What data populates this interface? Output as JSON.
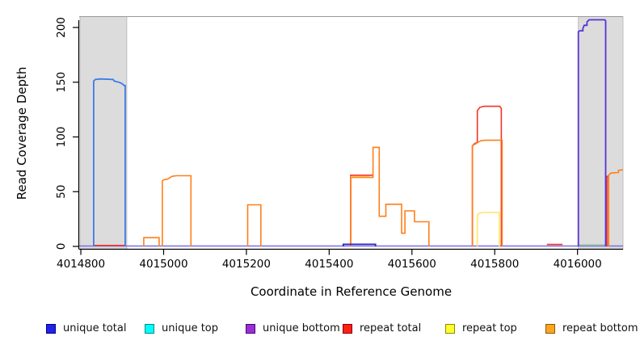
{
  "chart_data": {
    "type": "line",
    "title": "",
    "xlabel": "Coordinate in Reference Genome",
    "ylabel": "Read Coverage Depth",
    "xlim": [
      4014796,
      4016110
    ],
    "ylim": [
      0,
      210
    ],
    "xticks": [
      "4014800",
      "4015000",
      "4015200",
      "4015400",
      "4015600",
      "4015800",
      "4016000"
    ],
    "xtick_values": [
      4014800,
      4015000,
      4015200,
      4015400,
      4015600,
      4015800,
      4016000
    ],
    "yticks": [
      "0",
      "50",
      "100",
      "150",
      "200"
    ],
    "ytick_values": [
      0,
      50,
      100,
      150,
      200
    ],
    "grid": false,
    "background": "#ffffff",
    "shade_color": "#dcdcdc",
    "shade_border": "#b3b3b3",
    "shaded_regions": [
      {
        "x0": 4014798,
        "x1": 4014911,
        "meaning": "shaded region left"
      },
      {
        "x0": 4016002,
        "x1": 4016110,
        "meaning": "shaded region right"
      }
    ],
    "series": [
      {
        "name": "unique bottom baseline",
        "legend": "unique bottom",
        "color": "#7c6cee",
        "width": 1.5,
        "segments": [
          [
            [
              4014796,
              0.4
            ],
            [
              4016110,
              0.4
            ]
          ]
        ]
      },
      {
        "name": "repeat total",
        "legend": "repeat total",
        "color": "#f53227",
        "width": 1.6,
        "segments": [
          [
            [
              4014832,
              0.9
            ],
            [
              4014906,
              0.9
            ]
          ],
          [
            [
              4015452,
              0
            ],
            [
              4015452,
              65
            ],
            [
              4015506,
              65
            ]
          ],
          [
            [
              4015746,
              0
            ],
            [
              4015746,
              92
            ],
            [
              4015752,
              94
            ],
            [
              4015758,
              95
            ],
            [
              4015758,
              124
            ],
            [
              4015764,
              127
            ],
            [
              4015774,
              128
            ],
            [
              4015812,
              128
            ],
            [
              4015816,
              126
            ],
            [
              4015816,
              0
            ]
          ],
          [
            [
              4015926,
              1.8
            ],
            [
              4015964,
              1.8
            ]
          ],
          [
            [
              4016071,
              0
            ],
            [
              4016071,
              64
            ],
            [
              4016075,
              64
            ],
            [
              4016075,
              0
            ]
          ]
        ]
      },
      {
        "name": "repeat top",
        "legend": "repeat top",
        "color": "#ffe566",
        "width": 1.6,
        "segments": [
          [
            [
              4015452,
              63.6
            ],
            [
              4015497,
              63.6
            ]
          ],
          [
            [
              4015758,
              0
            ],
            [
              4015758,
              29
            ],
            [
              4015764,
              30.5
            ],
            [
              4015773,
              31
            ],
            [
              4015811,
              31
            ],
            [
              4015811,
              0
            ]
          ]
        ]
      },
      {
        "name": "repeat bottom",
        "legend": "repeat bottom",
        "color": "#ff7f1a",
        "width": 1.6,
        "segments": [
          [
            [
              4014952,
              0
            ],
            [
              4014952,
              8
            ],
            [
              4014989,
              8
            ],
            [
              4014989,
              0
            ]
          ],
          [
            [
              4014997,
              0
            ],
            [
              4014997,
              60
            ],
            [
              4015002,
              61
            ],
            [
              4015009,
              61.5
            ],
            [
              4015014,
              62.5
            ],
            [
              4015020,
              64
            ],
            [
              4015031,
              64.6
            ],
            [
              4015066,
              64.6
            ],
            [
              4015066,
              0
            ]
          ],
          [
            [
              4015203,
              0
            ],
            [
              4015203,
              38
            ],
            [
              4015235,
              38
            ],
            [
              4015235,
              0
            ]
          ],
          [
            [
              4015452,
              0
            ],
            [
              4015452,
              63
            ],
            [
              4015506,
              63
            ],
            [
              4015506,
              90.5
            ],
            [
              4015521,
              90.5
            ],
            [
              4015521,
              27.5
            ],
            [
              4015537,
              27.5
            ],
            [
              4015537,
              38.5
            ],
            [
              4015575,
              38.5
            ],
            [
              4015575,
              12
            ],
            [
              4015583,
              12
            ],
            [
              4015583,
              32.5
            ],
            [
              4015606,
              32.5
            ],
            [
              4015606,
              22.5
            ],
            [
              4015641,
              22.5
            ],
            [
              4015641,
              0
            ]
          ],
          [
            [
              4015746,
              0
            ],
            [
              4015746,
              92
            ],
            [
              4015753,
              93.5
            ],
            [
              4015759,
              95
            ],
            [
              4015767,
              96.5
            ],
            [
              4015777,
              97
            ],
            [
              4015818,
              97
            ],
            [
              4015818,
              0
            ]
          ],
          [
            [
              4016075,
              0
            ],
            [
              4016075,
              65
            ],
            [
              4016081,
              67
            ],
            [
              4016099,
              67.5
            ],
            [
              4016099,
              69.5
            ],
            [
              4016110,
              70
            ]
          ]
        ]
      },
      {
        "name": "unique top segment right region",
        "legend": "unique top",
        "color": "#8fd08f",
        "width": 1.5,
        "segments": [
          [
            [
              4016004,
              1.4
            ],
            [
              4016066,
              1.4
            ]
          ]
        ]
      },
      {
        "name": "unique total low bump mid",
        "legend": "unique total",
        "color": "#2b2bbb",
        "width": 1.8,
        "segments": [
          [
            [
              4015434,
              0
            ],
            [
              4015434,
              1.9
            ],
            [
              4015512,
              1.9
            ],
            [
              4015512,
              0
            ]
          ]
        ]
      },
      {
        "name": "unique total left block",
        "legend": "unique total",
        "color": "#3c7ce8",
        "width": 1.8,
        "segments": [
          [
            [
              4014831,
              0
            ],
            [
              4014831,
              151
            ],
            [
              4014835,
              152.5
            ],
            [
              4014848,
              153
            ],
            [
              4014878,
              152.5
            ],
            [
              4014881,
              151
            ],
            [
              4014892,
              150
            ],
            [
              4014898,
              149
            ],
            [
              4014902,
              148
            ],
            [
              4014904,
              147
            ],
            [
              4014907,
              147
            ],
            [
              4014907,
              0
            ]
          ]
        ]
      },
      {
        "name": "unique total right block",
        "legend": "unique total",
        "color": "#5633d6",
        "width": 1.8,
        "segments": [
          [
            [
              4016002,
              0
            ],
            [
              4016002,
              196
            ],
            [
              4016005,
              197
            ],
            [
              4016013,
              197
            ],
            [
              4016013,
              199
            ],
            [
              4016016,
              202
            ],
            [
              4016023,
              202
            ],
            [
              4016023,
              205
            ],
            [
              4016028,
              207
            ],
            [
              4016066,
              207
            ],
            [
              4016068,
              206
            ],
            [
              4016068,
              0
            ]
          ]
        ]
      }
    ]
  },
  "legend": {
    "items": [
      {
        "label": "unique total",
        "fill": "#2222e6",
        "border": "#00008b"
      },
      {
        "label": "unique top",
        "fill": "#00ffff",
        "border": "#008b8b"
      },
      {
        "label": "unique bottom",
        "fill": "#9a30d0",
        "border": "#4b0082"
      },
      {
        "label": "repeat total",
        "fill": "#ff2015",
        "border": "#8b0000"
      },
      {
        "label": "repeat top",
        "fill": "#ffff2e",
        "border": "#8b8b00"
      },
      {
        "label": "repeat bottom",
        "fill": "#ffa51e",
        "border": "#8b5a00"
      }
    ]
  }
}
